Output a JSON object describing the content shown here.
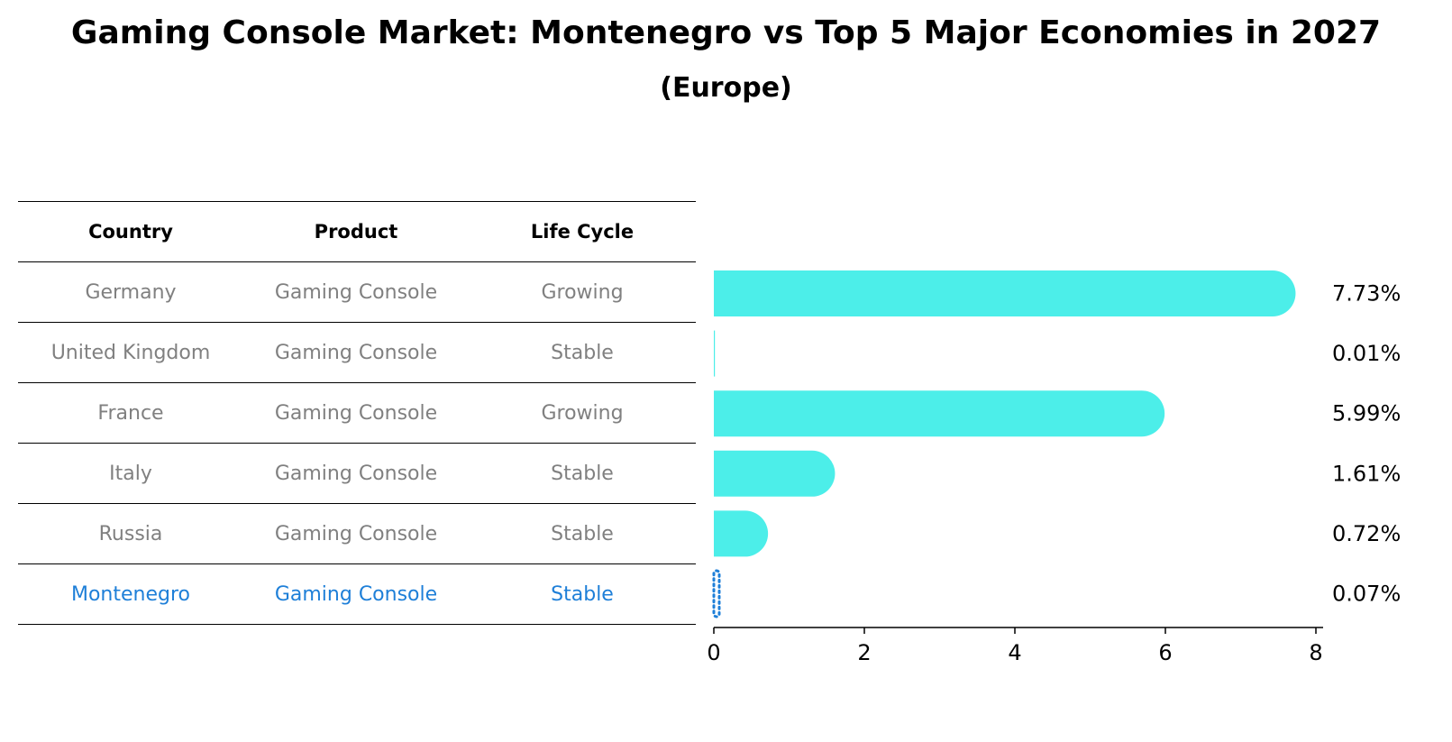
{
  "header": {
    "title": "Gaming Console Market: Montenegro vs Top 5 Major Economies in 2027",
    "subtitle": "(Europe)"
  },
  "table": {
    "columns": [
      "Country",
      "Product",
      "Life Cycle"
    ],
    "rows": [
      {
        "country": "Germany",
        "product": "Gaming Console",
        "life_cycle": "Growing"
      },
      {
        "country": "United Kingdom",
        "product": "Gaming Console",
        "life_cycle": "Stable"
      },
      {
        "country": "France",
        "product": "Gaming Console",
        "life_cycle": "Growing"
      },
      {
        "country": "Italy",
        "product": "Gaming Console",
        "life_cycle": "Stable"
      },
      {
        "country": "Russia",
        "product": "Gaming Console",
        "life_cycle": "Stable"
      },
      {
        "country": "Montenegro",
        "product": "Gaming Console",
        "life_cycle": "Stable"
      }
    ],
    "highlight_row": "Montenegro"
  },
  "colors": {
    "bar": "#4ceee9",
    "highlight": "#1e7fd8",
    "text_muted": "#808080"
  },
  "chart_data": {
    "type": "bar",
    "orientation": "horizontal",
    "categories": [
      "Germany",
      "United Kingdom",
      "France",
      "Italy",
      "Russia",
      "Montenegro"
    ],
    "values": [
      7.73,
      0.01,
      5.99,
      1.61,
      0.72,
      0.07
    ],
    "value_labels": [
      "7.73%",
      "0.01%",
      "5.99%",
      "1.61%",
      "0.72%",
      "0.07%"
    ],
    "xlim": [
      0,
      8
    ],
    "xticks": [
      0,
      2,
      4,
      6,
      8
    ],
    "grid": false,
    "legend": false
  }
}
